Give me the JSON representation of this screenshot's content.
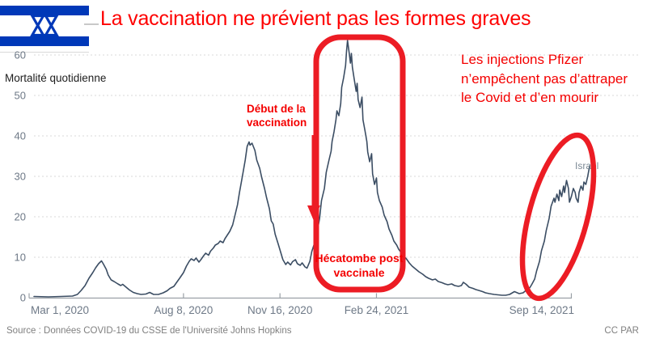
{
  "title": {
    "text": "La vaccination ne prévient pas les formes graves"
  },
  "flag": {
    "country": "Israel"
  },
  "annotations": {
    "debut": {
      "lines": [
        "Début de la",
        "vaccination"
      ]
    },
    "hecatombe": {
      "lines": [
        "Hécatombe post",
        "vaccinale"
      ]
    },
    "pfizer": {
      "lines": [
        "Les injections Pfizer",
        "n’empêchent pas d’attraper",
        "le Covid et d’en mourir"
      ]
    }
  },
  "colors": {
    "title_red": "#fe0000",
    "annotation_red": "#f40000",
    "shape_red": "#ec1c24",
    "flag_blue": "#0038b8"
  },
  "source": {
    "text": "Source : Données COVID-19 du CSSE de l'Université Johns Hopkins",
    "license": "CC PAR"
  },
  "chart_data": {
    "type": "line",
    "inline_label": "Mortalité quotidienne",
    "series_label": "Israel",
    "x_unit": "days since Mar 1, 2020",
    "xlim": [
      0,
      582
    ],
    "ylim": [
      0,
      64
    ],
    "grid": "dashed-horizontal",
    "legend_position": "inline-end-of-line",
    "line_color": "#3b4d63",
    "grid_color": "#d8d8d8",
    "axis_text_color": "#6e7987",
    "axis_line_color": "#9aa0a6",
    "y_ticks": [
      0,
      10,
      20,
      30,
      40,
      50,
      60
    ],
    "x_ticks": [
      {
        "day": 0,
        "label": "Mar 1, 2020"
      },
      {
        "day": 160,
        "label": "Aug 8, 2020"
      },
      {
        "day": 260,
        "label": "Nov 16, 2020"
      },
      {
        "day": 360,
        "label": "Feb 24, 2021"
      },
      {
        "day": 562,
        "label": "Sep 14, 2021"
      }
    ],
    "points": [
      [
        5,
        0.3
      ],
      [
        20,
        0.2
      ],
      [
        33,
        0.3
      ],
      [
        45,
        0.4
      ],
      [
        50,
        0.8
      ],
      [
        54,
        1.8
      ],
      [
        58,
        3
      ],
      [
        62,
        4.8
      ],
      [
        66,
        6.2
      ],
      [
        69,
        7.4
      ],
      [
        72,
        8.4
      ],
      [
        75,
        9.1
      ],
      [
        77,
        8.3
      ],
      [
        80,
        7
      ],
      [
        82,
        5.6
      ],
      [
        85,
        4.4
      ],
      [
        88,
        4
      ],
      [
        92,
        3.4
      ],
      [
        95,
        3
      ],
      [
        97,
        3.3
      ],
      [
        101,
        2.5
      ],
      [
        104,
        1.9
      ],
      [
        108,
        1.3
      ],
      [
        112,
        1
      ],
      [
        116,
        0.8
      ],
      [
        121,
        0.9
      ],
      [
        125,
        1.3
      ],
      [
        129,
        0.8
      ],
      [
        134,
        0.8
      ],
      [
        139,
        1.2
      ],
      [
        143,
        1.7
      ],
      [
        146,
        2.3
      ],
      [
        150,
        2.8
      ],
      [
        153,
        3.8
      ],
      [
        156,
        4.8
      ],
      [
        160,
        6.2
      ],
      [
        163,
        7.8
      ],
      [
        166,
        9
      ],
      [
        168,
        9.6
      ],
      [
        171,
        9.2
      ],
      [
        173,
        9.8
      ],
      [
        176,
        8.8
      ],
      [
        178,
        9.4
      ],
      [
        181,
        10.4
      ],
      [
        183,
        11
      ],
      [
        186,
        10.5
      ],
      [
        188,
        11.5
      ],
      [
        191,
        12.3
      ],
      [
        193,
        13
      ],
      [
        196,
        13.4
      ],
      [
        198,
        14
      ],
      [
        201,
        13.6
      ],
      [
        203,
        14.6
      ],
      [
        206,
        15.7
      ],
      [
        208,
        16.4
      ],
      [
        211,
        18
      ],
      [
        213,
        20
      ],
      [
        216,
        23
      ],
      [
        218,
        26
      ],
      [
        221,
        30
      ],
      [
        224,
        34
      ],
      [
        226,
        37.4
      ],
      [
        228,
        38.5
      ],
      [
        229,
        37.7
      ],
      [
        231,
        38.2
      ],
      [
        234,
        36.4
      ],
      [
        236,
        34
      ],
      [
        239,
        32
      ],
      [
        241,
        29.8
      ],
      [
        244,
        27
      ],
      [
        246,
        24.8
      ],
      [
        249,
        22
      ],
      [
        251,
        19
      ],
      [
        253,
        18.2
      ],
      [
        255,
        15.7
      ],
      [
        258,
        13.4
      ],
      [
        261,
        11
      ],
      [
        263,
        9.4
      ],
      [
        266,
        8.2
      ],
      [
        268,
        8.8
      ],
      [
        271,
        8.1
      ],
      [
        273,
        8.9
      ],
      [
        276,
        9.4
      ],
      [
        278,
        8.4
      ],
      [
        281,
        8
      ],
      [
        283,
        8.6
      ],
      [
        286,
        7.6
      ],
      [
        288,
        7.3
      ],
      [
        291,
        9
      ],
      [
        293,
        11.4
      ],
      [
        296,
        13.6
      ],
      [
        298,
        15.6
      ],
      [
        301,
        19.5
      ],
      [
        303,
        24
      ],
      [
        306,
        27
      ],
      [
        308,
        31
      ],
      [
        311,
        34.2
      ],
      [
        313,
        36.2
      ],
      [
        314,
        38.6
      ],
      [
        316,
        41
      ],
      [
        318,
        44
      ],
      [
        319,
        46.2
      ],
      [
        321,
        45
      ],
      [
        323,
        48
      ],
      [
        324,
        52
      ],
      [
        326,
        54.4
      ],
      [
        328,
        57.4
      ],
      [
        329,
        61
      ],
      [
        330,
        63.6
      ],
      [
        332,
        60
      ],
      [
        333,
        58
      ],
      [
        334,
        60.4
      ],
      [
        335,
        57
      ],
      [
        337,
        54
      ],
      [
        339,
        51
      ],
      [
        340,
        53
      ],
      [
        341,
        49
      ],
      [
        343,
        47
      ],
      [
        345,
        49.6
      ],
      [
        346,
        44
      ],
      [
        348,
        41.4
      ],
      [
        350,
        38.6
      ],
      [
        351,
        36
      ],
      [
        353,
        33.6
      ],
      [
        355,
        35.6
      ],
      [
        356,
        30.6
      ],
      [
        358,
        28
      ],
      [
        360,
        29.6
      ],
      [
        361,
        26
      ],
      [
        363,
        24
      ],
      [
        366,
        22.4
      ],
      [
        368,
        20.4
      ],
      [
        371,
        18.8
      ],
      [
        373,
        17
      ],
      [
        376,
        15.4
      ],
      [
        378,
        14
      ],
      [
        381,
        13
      ],
      [
        383,
        12
      ],
      [
        386,
        11
      ],
      [
        388,
        10.3
      ],
      [
        391,
        9.6
      ],
      [
        394,
        8.6
      ],
      [
        397,
        7.8
      ],
      [
        401,
        7
      ],
      [
        404,
        6.4
      ],
      [
        408,
        5.8
      ],
      [
        411,
        5.2
      ],
      [
        414,
        4.8
      ],
      [
        418,
        4.4
      ],
      [
        421,
        4.6
      ],
      [
        424,
        4
      ],
      [
        428,
        3.7
      ],
      [
        431,
        3.4
      ],
      [
        434,
        3.2
      ],
      [
        438,
        3.4
      ],
      [
        441,
        3
      ],
      [
        445,
        2.8
      ],
      [
        448,
        3
      ],
      [
        450,
        3.8
      ],
      [
        453,
        3.3
      ],
      [
        456,
        2.6
      ],
      [
        460,
        2.3
      ],
      [
        463,
        2
      ],
      [
        466,
        1.8
      ],
      [
        470,
        1.5
      ],
      [
        473,
        1.2
      ],
      [
        477,
        1
      ],
      [
        482,
        0.8
      ],
      [
        486,
        0.7
      ],
      [
        490,
        0.6
      ],
      [
        494,
        0.6
      ],
      [
        498,
        0.8
      ],
      [
        503,
        1.5
      ],
      [
        505,
        1.3
      ],
      [
        508,
        1
      ],
      [
        512,
        1.2
      ],
      [
        515,
        1.8
      ],
      [
        519,
        2.5
      ],
      [
        521,
        3.3
      ],
      [
        524,
        4.6
      ],
      [
        526,
        6.6
      ],
      [
        529,
        9
      ],
      [
        531,
        11.6
      ],
      [
        534,
        14
      ],
      [
        536,
        16.6
      ],
      [
        539,
        19.6
      ],
      [
        541,
        22.6
      ],
      [
        544,
        24.6
      ],
      [
        545,
        23.6
      ],
      [
        547,
        25.6
      ],
      [
        549,
        24
      ],
      [
        550,
        26.6
      ],
      [
        552,
        25
      ],
      [
        554,
        27.6
      ],
      [
        555,
        26
      ],
      [
        557,
        29
      ],
      [
        559,
        27
      ],
      [
        560,
        23.6
      ],
      [
        562,
        25
      ],
      [
        564,
        27
      ],
      [
        566,
        26
      ],
      [
        567,
        24.6
      ],
      [
        569,
        23.6
      ],
      [
        570,
        26
      ],
      [
        572,
        27.6
      ],
      [
        574,
        26.6
      ],
      [
        575,
        28.6
      ],
      [
        577,
        28
      ],
      [
        579,
        30
      ],
      [
        581,
        32.6
      ]
    ]
  }
}
